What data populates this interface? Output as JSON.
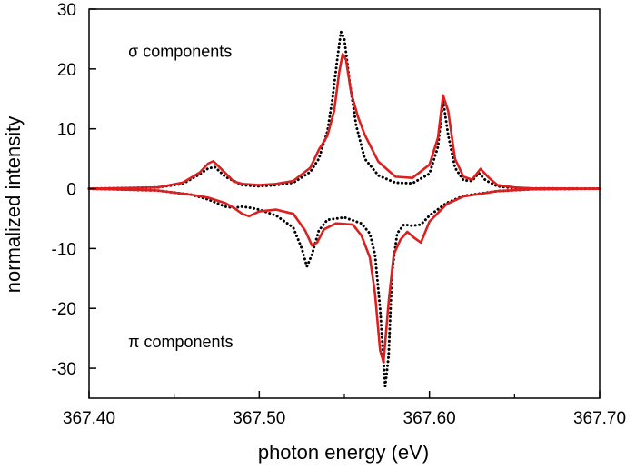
{
  "chart_data": {
    "type": "line",
    "xlabel": "photon energy (eV)",
    "ylabel": "normalized intensity",
    "xlim": [
      367.4,
      367.7
    ],
    "ylim": [
      -35,
      30
    ],
    "xticks": [
      367.4,
      367.5,
      367.6,
      367.7
    ],
    "xtick_labels": [
      "367.40",
      "367.50",
      "367.60",
      "367.70"
    ],
    "yticks": [
      -30,
      -20,
      -10,
      0,
      10,
      20,
      30
    ],
    "ytick_labels": [
      "-30",
      "-20",
      "-10",
      "0",
      "10",
      "20",
      "30"
    ],
    "grid": false,
    "annotations": [
      {
        "text": "σ components",
        "x": 367.423,
        "y": 22
      },
      {
        "text": "π components",
        "x": 367.423,
        "y": -26.5
      }
    ],
    "series": [
      {
        "style": "dotted",
        "color": "#000000",
        "component": "sigma",
        "x": [
          367.4,
          367.44,
          367.455,
          367.465,
          367.47,
          367.474,
          367.48,
          367.49,
          367.5,
          367.51,
          367.52,
          367.53,
          367.535,
          367.54,
          367.543,
          367.546,
          367.548,
          367.55,
          367.553,
          367.557,
          367.562,
          367.57,
          367.58,
          367.59,
          367.6,
          367.605,
          367.608,
          367.611,
          367.615,
          367.62,
          367.625,
          367.629,
          367.633,
          367.64,
          367.65,
          367.66,
          367.7
        ],
        "y": [
          0,
          0.2,
          0.8,
          2.4,
          3.4,
          3.6,
          2.0,
          0.6,
          0.4,
          0.6,
          1.0,
          2.8,
          5.0,
          9.5,
          15.0,
          22.0,
          26.2,
          25.0,
          18.0,
          10.5,
          5.0,
          2.2,
          1.0,
          0.9,
          2.5,
          7.0,
          14.8,
          9.0,
          3.5,
          1.4,
          1.3,
          2.6,
          1.4,
          0.4,
          0.1,
          0.05,
          0
        ]
      },
      {
        "style": "solid",
        "color": "#dd1f1f",
        "component": "sigma",
        "x": [
          367.4,
          367.44,
          367.455,
          367.465,
          367.47,
          367.473,
          367.478,
          367.485,
          367.49,
          367.5,
          367.51,
          367.52,
          367.53,
          367.535,
          367.54,
          367.544,
          367.547,
          367.549,
          367.551,
          367.554,
          367.558,
          367.562,
          367.57,
          367.58,
          367.59,
          367.6,
          367.605,
          367.608,
          367.611,
          367.615,
          367.62,
          367.625,
          367.63,
          367.635,
          367.64,
          367.65,
          367.66,
          367.7
        ],
        "y": [
          0,
          0.2,
          1.0,
          2.7,
          4.2,
          4.6,
          3.2,
          1.2,
          0.8,
          0.6,
          0.8,
          1.3,
          3.5,
          6.5,
          8.8,
          13.0,
          19.5,
          22.5,
          21.5,
          16.0,
          12.0,
          9.0,
          4.5,
          2.0,
          1.8,
          4.0,
          8.5,
          15.6,
          13.0,
          5.0,
          2.0,
          1.5,
          3.3,
          1.8,
          0.6,
          0.2,
          0.05,
          0
        ]
      },
      {
        "style": "dotted",
        "color": "#000000",
        "component": "pi",
        "x": [
          367.4,
          367.44,
          367.46,
          367.47,
          367.475,
          367.48,
          367.485,
          367.49,
          367.495,
          367.5,
          367.51,
          367.52,
          367.525,
          367.528,
          367.531,
          367.535,
          367.54,
          367.55,
          367.56,
          367.565,
          367.568,
          367.571,
          367.574,
          367.576,
          367.578,
          367.581,
          367.585,
          367.59,
          367.595,
          367.6,
          367.61,
          367.62,
          367.64,
          367.66,
          367.7
        ],
        "y": [
          0,
          -0.3,
          -1.0,
          -1.8,
          -2.4,
          -3.0,
          -3.2,
          -3.0,
          -3.2,
          -3.5,
          -4.5,
          -6.5,
          -10.0,
          -13.0,
          -11.0,
          -7.0,
          -5.2,
          -4.8,
          -5.8,
          -7.5,
          -11.0,
          -20.0,
          -33.0,
          -28.0,
          -14.0,
          -7.5,
          -6.0,
          -6.2,
          -6.0,
          -4.5,
          -2.4,
          -1.2,
          -0.4,
          -0.1,
          0
        ]
      },
      {
        "style": "solid",
        "color": "#dd1f1f",
        "component": "pi",
        "x": [
          367.4,
          367.44,
          367.46,
          367.47,
          367.48,
          367.485,
          367.49,
          367.494,
          367.5,
          367.51,
          367.52,
          367.527,
          367.531,
          367.534,
          367.538,
          367.545,
          367.555,
          367.56,
          367.565,
          367.568,
          367.571,
          367.573,
          367.576,
          367.579,
          367.583,
          367.587,
          367.591,
          367.595,
          367.6,
          367.61,
          367.62,
          367.64,
          367.66,
          367.7
        ],
        "y": [
          0,
          -0.3,
          -1.0,
          -1.5,
          -2.4,
          -3.2,
          -4.2,
          -4.6,
          -3.8,
          -3.5,
          -4.2,
          -7.0,
          -9.5,
          -9.0,
          -6.8,
          -5.8,
          -6.0,
          -7.8,
          -11.5,
          -17.5,
          -27.0,
          -29.0,
          -19.0,
          -11.0,
          -8.5,
          -7.2,
          -8.2,
          -9.0,
          -5.5,
          -2.6,
          -1.3,
          -0.4,
          -0.1,
          0
        ]
      }
    ]
  }
}
